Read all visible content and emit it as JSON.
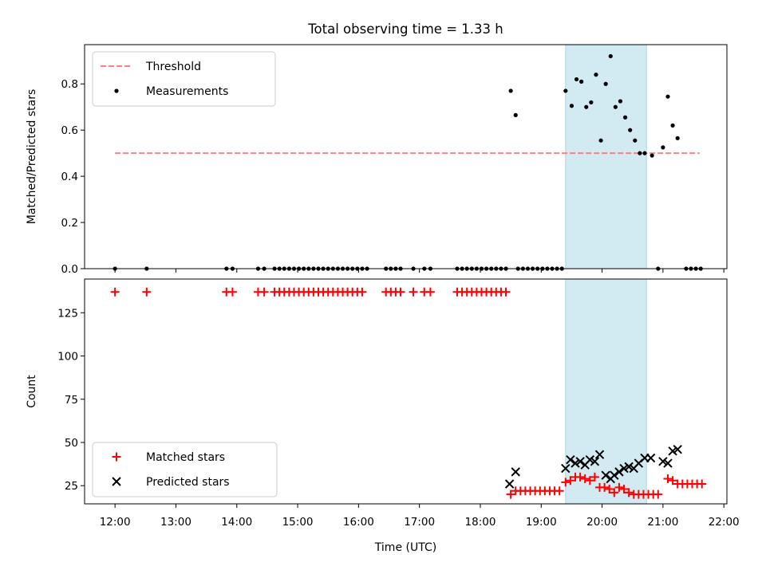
{
  "title": "Total observing time = 1.33 h",
  "colors": {
    "threshold": "#ff7f7f",
    "measurement": "#000000",
    "matched": "#ff0000",
    "predicted": "#000000",
    "span": "#add8e6"
  },
  "chart_data": [
    {
      "type": "scatter",
      "panel": "top",
      "ylabel": "Matched/Predicted stars",
      "xlim": [
        11.5,
        22.05
      ],
      "ylim": [
        0.0,
        0.97
      ],
      "yticks": [
        0.0,
        0.2,
        0.4,
        0.6,
        0.8
      ],
      "ytick_labels": [
        "0.0",
        "0.2",
        "0.4",
        "0.6",
        "0.8"
      ],
      "grid": false,
      "legend_position": "top-left",
      "highlight_span": [
        19.4,
        20.73
      ],
      "threshold": {
        "name": "Threshold",
        "y": 0.5,
        "x_range": [
          12.0,
          21.6
        ]
      },
      "series": [
        {
          "name": "Measurements",
          "points": [
            [
              12.0,
              0.0
            ],
            [
              12.52,
              0.0
            ],
            [
              13.83,
              0.0
            ],
            [
              13.93,
              0.0
            ],
            [
              14.35,
              0.0
            ],
            [
              14.45,
              0.0
            ],
            [
              14.62,
              0.0
            ],
            [
              14.7,
              0.0
            ],
            [
              14.78,
              0.0
            ],
            [
              14.86,
              0.0
            ],
            [
              14.94,
              0.0
            ],
            [
              15.02,
              0.0
            ],
            [
              15.1,
              0.0
            ],
            [
              15.18,
              0.0
            ],
            [
              15.26,
              0.0
            ],
            [
              15.34,
              0.0
            ],
            [
              15.42,
              0.0
            ],
            [
              15.5,
              0.0
            ],
            [
              15.58,
              0.0
            ],
            [
              15.66,
              0.0
            ],
            [
              15.74,
              0.0
            ],
            [
              15.82,
              0.0
            ],
            [
              15.9,
              0.0
            ],
            [
              15.98,
              0.0
            ],
            [
              16.06,
              0.0
            ],
            [
              16.14,
              0.0
            ],
            [
              16.45,
              0.0
            ],
            [
              16.53,
              0.0
            ],
            [
              16.61,
              0.0
            ],
            [
              16.69,
              0.0
            ],
            [
              16.9,
              0.0
            ],
            [
              17.08,
              0.0
            ],
            [
              17.18,
              0.0
            ],
            [
              17.62,
              0.0
            ],
            [
              17.7,
              0.0
            ],
            [
              17.78,
              0.0
            ],
            [
              17.86,
              0.0
            ],
            [
              17.94,
              0.0
            ],
            [
              18.02,
              0.0
            ],
            [
              18.1,
              0.0
            ],
            [
              18.18,
              0.0
            ],
            [
              18.26,
              0.0
            ],
            [
              18.34,
              0.0
            ],
            [
              18.42,
              0.0
            ],
            [
              18.62,
              0.0
            ],
            [
              18.7,
              0.0
            ],
            [
              18.78,
              0.0
            ],
            [
              18.86,
              0.0
            ],
            [
              18.94,
              0.0
            ],
            [
              19.02,
              0.0
            ],
            [
              19.1,
              0.0
            ],
            [
              19.18,
              0.0
            ],
            [
              19.26,
              0.0
            ],
            [
              19.34,
              0.0
            ],
            [
              20.92,
              0.0
            ],
            [
              21.38,
              0.0
            ],
            [
              21.46,
              0.0
            ],
            [
              21.54,
              0.0
            ],
            [
              21.62,
              0.0
            ],
            [
              18.5,
              0.77
            ],
            [
              18.58,
              0.665
            ],
            [
              19.4,
              0.77
            ],
            [
              19.5,
              0.705
            ],
            [
              19.58,
              0.82
            ],
            [
              19.66,
              0.81
            ],
            [
              19.74,
              0.7
            ],
            [
              19.82,
              0.72
            ],
            [
              19.9,
              0.84
            ],
            [
              19.98,
              0.555
            ],
            [
              20.06,
              0.8
            ],
            [
              20.14,
              0.92
            ],
            [
              20.22,
              0.7
            ],
            [
              20.3,
              0.725
            ],
            [
              20.38,
              0.655
            ],
            [
              20.46,
              0.6
            ],
            [
              20.54,
              0.555
            ],
            [
              20.62,
              0.5
            ],
            [
              20.7,
              0.5
            ],
            [
              20.82,
              0.49
            ],
            [
              21.0,
              0.525
            ],
            [
              21.08,
              0.745
            ],
            [
              21.16,
              0.62
            ],
            [
              21.24,
              0.565
            ]
          ]
        }
      ]
    },
    {
      "type": "scatter",
      "panel": "bottom",
      "xlabel": "Time (UTC)",
      "ylabel": "Count",
      "xlim": [
        11.5,
        22.05
      ],
      "ylim": [
        14.5,
        144.5
      ],
      "xticks": [
        12,
        13,
        14,
        15,
        16,
        17,
        18,
        19,
        20,
        21,
        22
      ],
      "xtick_labels": [
        "12:00",
        "13:00",
        "14:00",
        "15:00",
        "16:00",
        "17:00",
        "18:00",
        "19:00",
        "20:00",
        "21:00",
        "22:00"
      ],
      "yticks": [
        25,
        50,
        75,
        100,
        125
      ],
      "ytick_labels": [
        "25",
        "50",
        "75",
        "100",
        "125"
      ],
      "grid": false,
      "legend_position": "bottom-left",
      "highlight_span": [
        19.4,
        20.73
      ],
      "series": [
        {
          "name": "Matched stars",
          "marker": "plus",
          "points": [
            [
              12.0,
              137
            ],
            [
              12.52,
              137
            ],
            [
              13.83,
              137
            ],
            [
              13.93,
              137
            ],
            [
              14.35,
              137
            ],
            [
              14.45,
              137
            ],
            [
              14.62,
              137
            ],
            [
              14.7,
              137
            ],
            [
              14.78,
              137
            ],
            [
              14.86,
              137
            ],
            [
              14.94,
              137
            ],
            [
              15.02,
              137
            ],
            [
              15.1,
              137
            ],
            [
              15.18,
              137
            ],
            [
              15.26,
              137
            ],
            [
              15.34,
              137
            ],
            [
              15.42,
              137
            ],
            [
              15.5,
              137
            ],
            [
              15.58,
              137
            ],
            [
              15.66,
              137
            ],
            [
              15.74,
              137
            ],
            [
              15.82,
              137
            ],
            [
              15.9,
              137
            ],
            [
              15.98,
              137
            ],
            [
              16.06,
              137
            ],
            [
              16.45,
              137
            ],
            [
              16.53,
              137
            ],
            [
              16.61,
              137
            ],
            [
              16.69,
              137
            ],
            [
              16.9,
              137
            ],
            [
              17.08,
              137
            ],
            [
              17.18,
              137
            ],
            [
              17.62,
              137
            ],
            [
              17.7,
              137
            ],
            [
              17.78,
              137
            ],
            [
              17.86,
              137
            ],
            [
              17.94,
              137
            ],
            [
              18.02,
              137
            ],
            [
              18.1,
              137
            ],
            [
              18.18,
              137
            ],
            [
              18.26,
              137
            ],
            [
              18.34,
              137
            ],
            [
              18.42,
              137
            ],
            [
              18.5,
              20
            ],
            [
              18.58,
              22
            ],
            [
              18.66,
              22
            ],
            [
              18.74,
              22
            ],
            [
              18.82,
              22
            ],
            [
              18.9,
              22
            ],
            [
              18.98,
              22
            ],
            [
              19.06,
              22
            ],
            [
              19.14,
              22
            ],
            [
              19.22,
              22
            ],
            [
              19.3,
              22
            ],
            [
              19.4,
              27
            ],
            [
              19.48,
              28
            ],
            [
              19.56,
              30
            ],
            [
              19.64,
              30
            ],
            [
              19.72,
              29
            ],
            [
              19.8,
              28
            ],
            [
              19.88,
              30
            ],
            [
              19.96,
              24
            ],
            [
              20.04,
              24
            ],
            [
              20.12,
              23
            ],
            [
              20.2,
              21
            ],
            [
              20.28,
              24
            ],
            [
              20.36,
              23
            ],
            [
              20.44,
              21
            ],
            [
              20.52,
              20
            ],
            [
              20.6,
              20
            ],
            [
              20.68,
              20
            ],
            [
              20.76,
              20
            ],
            [
              20.84,
              20
            ],
            [
              20.92,
              20
            ],
            [
              21.08,
              29
            ],
            [
              21.16,
              28
            ],
            [
              21.24,
              26
            ],
            [
              21.32,
              26
            ],
            [
              21.4,
              26
            ],
            [
              21.48,
              26
            ],
            [
              21.56,
              26
            ],
            [
              21.64,
              26
            ]
          ]
        },
        {
          "name": "Predicted stars",
          "marker": "x",
          "points": [
            [
              18.48,
              26
            ],
            [
              18.58,
              33
            ],
            [
              19.4,
              35
            ],
            [
              19.48,
              40
            ],
            [
              19.56,
              38
            ],
            [
              19.64,
              39
            ],
            [
              19.72,
              37
            ],
            [
              19.8,
              40
            ],
            [
              19.88,
              39
            ],
            [
              19.96,
              43
            ],
            [
              20.06,
              31
            ],
            [
              20.14,
              29
            ],
            [
              20.2,
              31
            ],
            [
              20.28,
              33
            ],
            [
              20.36,
              35
            ],
            [
              20.44,
              36
            ],
            [
              20.52,
              35
            ],
            [
              20.6,
              38
            ],
            [
              20.7,
              41
            ],
            [
              20.8,
              41
            ],
            [
              21.0,
              39
            ],
            [
              21.08,
              38
            ],
            [
              21.16,
              45
            ],
            [
              21.24,
              46
            ]
          ]
        }
      ]
    }
  ]
}
